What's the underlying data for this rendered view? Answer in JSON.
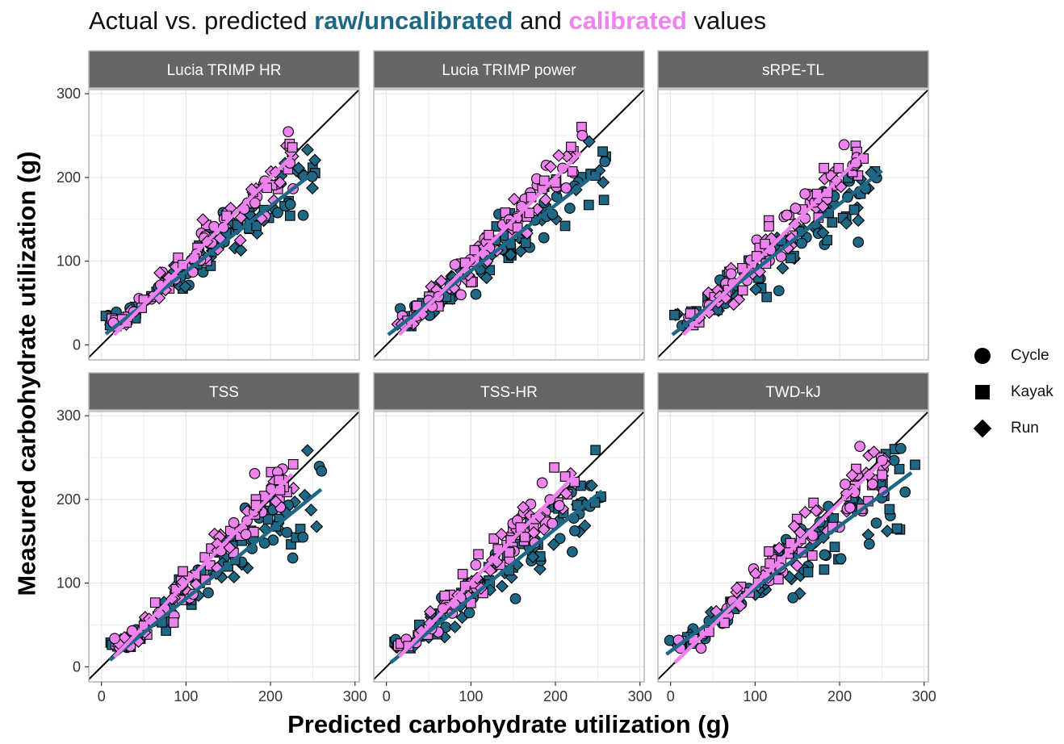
{
  "title": {
    "prefix": "Actual vs. predicted ",
    "raw": "raw/uncalibrated",
    "middle": " and ",
    "calibrated": "calibrated",
    "suffix": " values"
  },
  "colors": {
    "raw": "#1E6785",
    "calibrated": "#EE82EE",
    "strip_background": "#666666",
    "identity_line": "#000000"
  },
  "legend": {
    "items": [
      {
        "label": "Cycle",
        "shape": "circle"
      },
      {
        "label": "Kayak",
        "shape": "square"
      },
      {
        "label": "Run",
        "shape": "diamond"
      }
    ]
  },
  "chart_data": {
    "type": "scatter",
    "title": "Actual vs. predicted raw/uncalibrated and calibrated values",
    "xlabel": "Predicted carbohydrate utilization (g)",
    "ylabel": "Measured carbohydrate utilization (g)",
    "xlim": [
      -15,
      305
    ],
    "ylim": [
      -18,
      305
    ],
    "xticks": [
      0,
      100,
      200,
      300
    ],
    "yticks": [
      0,
      100,
      200,
      300
    ],
    "grid": true,
    "identity_line": true,
    "legend_position": "right",
    "series": [
      {
        "name": "raw/uncalibrated",
        "color": "#1E6785"
      },
      {
        "name": "calibrated",
        "color": "#EE82EE"
      }
    ],
    "facets": [
      {
        "label": "Lucia TRIMP HR",
        "fit_raw": [
          [
            5,
            13
          ],
          [
            250,
            205
          ]
        ],
        "fit_calibrated": [
          [
            15,
            12
          ],
          [
            225,
            225
          ]
        ],
        "raw_points": {
          "x_range": [
            5,
            255
          ],
          "slope": 0.78,
          "intercept": 10,
          "noise": 22
        },
        "calibrated_points": {
          "x_range": [
            12,
            230
          ],
          "slope": 1.0,
          "intercept": 0,
          "noise": 20
        }
      },
      {
        "label": "Lucia TRIMP power",
        "fit_raw": [
          [
            2,
            12
          ],
          [
            255,
            210
          ]
        ],
        "fit_calibrated": [
          [
            15,
            12
          ],
          [
            230,
            230
          ]
        ],
        "raw_points": {
          "x_range": [
            3,
            260
          ],
          "slope": 0.78,
          "intercept": 10,
          "noise": 24
        },
        "calibrated_points": {
          "x_range": [
            12,
            232
          ],
          "slope": 1.0,
          "intercept": 0,
          "noise": 22
        }
      },
      {
        "label": "sRPE-TL",
        "fit_raw": [
          [
            2,
            12
          ],
          [
            250,
            208
          ]
        ],
        "fit_calibrated": [
          [
            15,
            12
          ],
          [
            228,
            228
          ]
        ],
        "raw_points": {
          "x_range": [
            3,
            255
          ],
          "slope": 0.78,
          "intercept": 10,
          "noise": 24
        },
        "calibrated_points": {
          "x_range": [
            12,
            230
          ],
          "slope": 1.0,
          "intercept": 0,
          "noise": 22
        }
      },
      {
        "label": "TSS",
        "fit_raw": [
          [
            10,
            8
          ],
          [
            260,
            212
          ]
        ],
        "fit_calibrated": [
          [
            15,
            12
          ],
          [
            225,
            230
          ]
        ],
        "raw_points": {
          "x_range": [
            5,
            262
          ],
          "slope": 0.8,
          "intercept": 5,
          "noise": 24
        },
        "calibrated_points": {
          "x_range": [
            12,
            230
          ],
          "slope": 1.02,
          "intercept": -2,
          "noise": 20
        }
      },
      {
        "label": "TSS-HR",
        "fit_raw": [
          [
            5,
            5
          ],
          [
            255,
            210
          ]
        ],
        "fit_calibrated": [
          [
            15,
            12
          ],
          [
            222,
            228
          ]
        ],
        "raw_points": {
          "x_range": [
            3,
            260
          ],
          "slope": 0.8,
          "intercept": 5,
          "noise": 24
        },
        "calibrated_points": {
          "x_range": [
            12,
            225
          ],
          "slope": 1.03,
          "intercept": -3,
          "noise": 20
        }
      },
      {
        "label": "TWD-kJ",
        "fit_raw": [
          [
            -5,
            15
          ],
          [
            285,
            232
          ]
        ],
        "fit_calibrated": [
          [
            5,
            5
          ],
          [
            255,
            250
          ]
        ],
        "raw_points": {
          "x_range": [
            -5,
            290
          ],
          "slope": 0.75,
          "intercept": 18,
          "noise": 28
        },
        "calibrated_points": {
          "x_range": [
            5,
            255
          ],
          "slope": 0.98,
          "intercept": 0,
          "noise": 24
        }
      }
    ]
  }
}
